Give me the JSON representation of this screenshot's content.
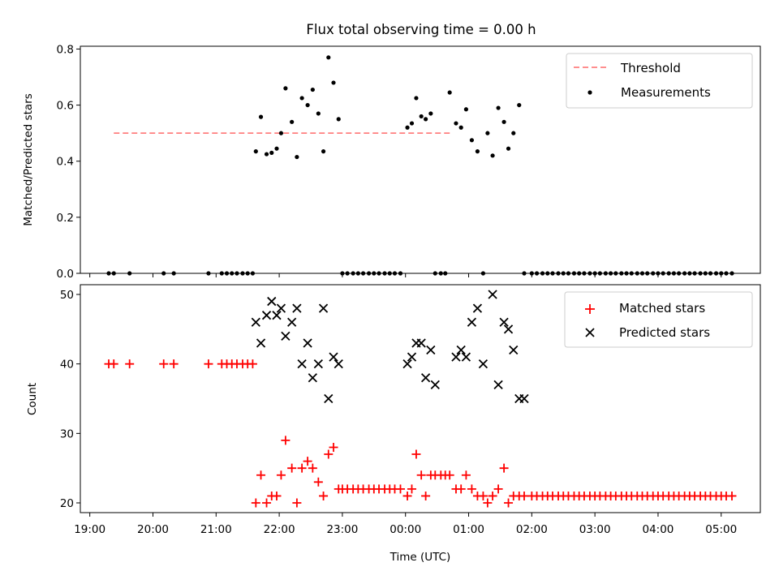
{
  "title": "Flux total observing time = 0.00 h",
  "chart_data": [
    {
      "type": "scatter",
      "panel": "top",
      "ylabel": "Matched/Predicted stars",
      "ylim": [
        0,
        0.81
      ],
      "yticks": [
        0.0,
        0.2,
        0.4,
        0.6,
        0.8
      ],
      "ytick_labels": [
        "0.0",
        "0.2",
        "0.4",
        "0.6",
        "0.8"
      ],
      "legend_position": "top-right",
      "series": [
        {
          "name": "Threshold",
          "kind": "dashed-line",
          "color": "#ff7f7f",
          "x": [
            19.38,
            24.73
          ],
          "y": [
            0.5,
            0.5
          ]
        },
        {
          "name": "Measurements",
          "kind": "points",
          "color": "#000000",
          "x": [
            19.3,
            19.38,
            19.63,
            20.17,
            20.33,
            20.88,
            21.09,
            21.17,
            21.25,
            21.33,
            21.42,
            21.5,
            21.58,
            21.63,
            21.71,
            21.8,
            21.88,
            21.96,
            22.03,
            22.1,
            22.2,
            22.28,
            22.36,
            22.45,
            22.53,
            22.62,
            22.7,
            22.78,
            22.86,
            22.94,
            23.0,
            23.08,
            23.17,
            23.25,
            23.33,
            23.42,
            23.5,
            23.58,
            23.67,
            23.75,
            23.83,
            23.92,
            24.03,
            24.1,
            24.17,
            24.25,
            24.32,
            24.4,
            24.47,
            24.56,
            24.63,
            24.7,
            24.8,
            24.88,
            24.96,
            25.05,
            25.14,
            25.23,
            25.3,
            25.38,
            25.47,
            25.56,
            25.63,
            25.71,
            25.8,
            25.88,
            26.0,
            26.08,
            26.17,
            26.25,
            26.33,
            26.42,
            26.5,
            26.58,
            26.67,
            26.75,
            26.83,
            26.92,
            27.0,
            27.08,
            27.17,
            27.25,
            27.33,
            27.42,
            27.5,
            27.58,
            27.67,
            27.75,
            27.83,
            27.92,
            28.0,
            28.08,
            28.17,
            28.25,
            28.33,
            28.42,
            28.5,
            28.58,
            28.67,
            28.75,
            28.83,
            28.92,
            29.0,
            29.08,
            29.17
          ],
          "y": [
            0,
            0,
            0,
            0,
            0,
            0,
            0,
            0,
            0,
            0,
            0,
            0,
            0,
            0.435,
            0.558,
            0.425,
            0.43,
            0.445,
            0.5,
            0.66,
            0.54,
            0.415,
            0.625,
            0.6,
            0.655,
            0.57,
            0.435,
            0.77,
            0.68,
            0.55,
            0,
            0,
            0,
            0,
            0,
            0,
            0,
            0,
            0,
            0,
            0,
            0,
            0.52,
            0.535,
            0.625,
            0.56,
            0.55,
            0.57,
            0,
            0,
            0,
            0.645,
            0.535,
            0.52,
            0.585,
            0.475,
            0.435,
            0,
            0.5,
            0.42,
            0.59,
            0.54,
            0.445,
            0.5,
            0.6,
            0,
            0,
            0,
            0,
            0,
            0,
            0,
            0,
            0,
            0,
            0,
            0,
            0,
            0,
            0,
            0,
            0,
            0,
            0,
            0,
            0,
            0,
            0,
            0,
            0,
            0,
            0,
            0,
            0,
            0,
            0,
            0,
            0,
            0,
            0,
            0,
            0,
            0,
            0,
            0
          ]
        }
      ]
    },
    {
      "type": "scatter",
      "panel": "bottom",
      "xlabel": "Time (UTC)",
      "ylabel": "Count",
      "xlim": [
        18.85,
        29.62
      ],
      "xticks": [
        19,
        20,
        21,
        22,
        23,
        24,
        25,
        26,
        27,
        28,
        29
      ],
      "xtick_labels": [
        "19:00",
        "20:00",
        "21:00",
        "22:00",
        "23:00",
        "00:00",
        "01:00",
        "02:00",
        "03:00",
        "04:00",
        "05:00"
      ],
      "ylim": [
        18.6,
        51.4
      ],
      "yticks": [
        20,
        30,
        40,
        50
      ],
      "ytick_labels": [
        "20",
        "30",
        "40",
        "50"
      ],
      "legend_position": "top-right",
      "series": [
        {
          "name": "Matched stars",
          "kind": "plus",
          "color": "#ff0000",
          "x": [
            19.3,
            19.38,
            19.63,
            20.17,
            20.33,
            20.88,
            21.09,
            21.17,
            21.25,
            21.33,
            21.42,
            21.5,
            21.58,
            21.63,
            21.71,
            21.8,
            21.88,
            21.96,
            22.03,
            22.1,
            22.2,
            22.28,
            22.36,
            22.45,
            22.53,
            22.62,
            22.7,
            22.78,
            22.86,
            22.94,
            23.0,
            23.08,
            23.17,
            23.25,
            23.33,
            23.42,
            23.5,
            23.58,
            23.67,
            23.75,
            23.83,
            23.92,
            24.03,
            24.1,
            24.17,
            24.25,
            24.32,
            24.4,
            24.47,
            24.56,
            24.63,
            24.7,
            24.8,
            24.88,
            24.96,
            25.05,
            25.14,
            25.23,
            25.3,
            25.38,
            25.47,
            25.56,
            25.63,
            25.71,
            25.8,
            25.88,
            26.0,
            26.08,
            26.17,
            26.25,
            26.33,
            26.42,
            26.5,
            26.58,
            26.67,
            26.75,
            26.83,
            26.92,
            27.0,
            27.08,
            27.17,
            27.25,
            27.33,
            27.42,
            27.5,
            27.58,
            27.67,
            27.75,
            27.83,
            27.92,
            28.0,
            28.08,
            28.17,
            28.25,
            28.33,
            28.42,
            28.5,
            28.58,
            28.67,
            28.75,
            28.83,
            28.92,
            29.0,
            29.08,
            29.17
          ],
          "y": [
            40,
            40,
            40,
            40,
            40,
            40,
            40,
            40,
            40,
            40,
            40,
            40,
            40,
            20,
            24,
            20,
            21,
            21,
            24,
            29,
            25,
            20,
            25,
            26,
            25,
            23,
            21,
            27,
            28,
            22,
            22,
            22,
            22,
            22,
            22,
            22,
            22,
            22,
            22,
            22,
            22,
            22,
            21,
            22,
            27,
            24,
            21,
            24,
            24,
            24,
            24,
            24,
            22,
            22,
            24,
            22,
            21,
            21,
            20,
            21,
            22,
            25,
            20,
            21,
            21,
            21,
            21,
            21,
            21,
            21,
            21,
            21,
            21,
            21,
            21,
            21,
            21,
            21,
            21,
            21,
            21,
            21,
            21,
            21,
            21,
            21,
            21,
            21,
            21,
            21,
            21,
            21,
            21,
            21,
            21,
            21,
            21,
            21,
            21,
            21,
            21,
            21,
            21,
            21,
            21
          ]
        },
        {
          "name": "Predicted stars",
          "kind": "x",
          "color": "#000000",
          "x": [
            21.63,
            21.71,
            21.8,
            21.88,
            21.96,
            22.03,
            22.1,
            22.2,
            22.28,
            22.36,
            22.45,
            22.53,
            22.62,
            22.7,
            22.78,
            22.86,
            22.94,
            24.03,
            24.1,
            24.17,
            24.25,
            24.32,
            24.4,
            24.47,
            24.8,
            24.88,
            24.96,
            25.05,
            25.14,
            25.23,
            25.38,
            25.47,
            25.56,
            25.63,
            25.71,
            25.8,
            25.88
          ],
          "y": [
            46,
            43,
            47,
            49,
            47,
            48,
            44,
            46,
            48,
            40,
            43,
            38,
            40,
            48,
            35,
            41,
            40,
            40,
            41,
            43,
            43,
            38,
            42,
            37,
            41,
            42,
            41,
            46,
            48,
            40,
            50,
            37,
            46,
            45,
            42,
            35,
            35
          ]
        }
      ]
    }
  ]
}
